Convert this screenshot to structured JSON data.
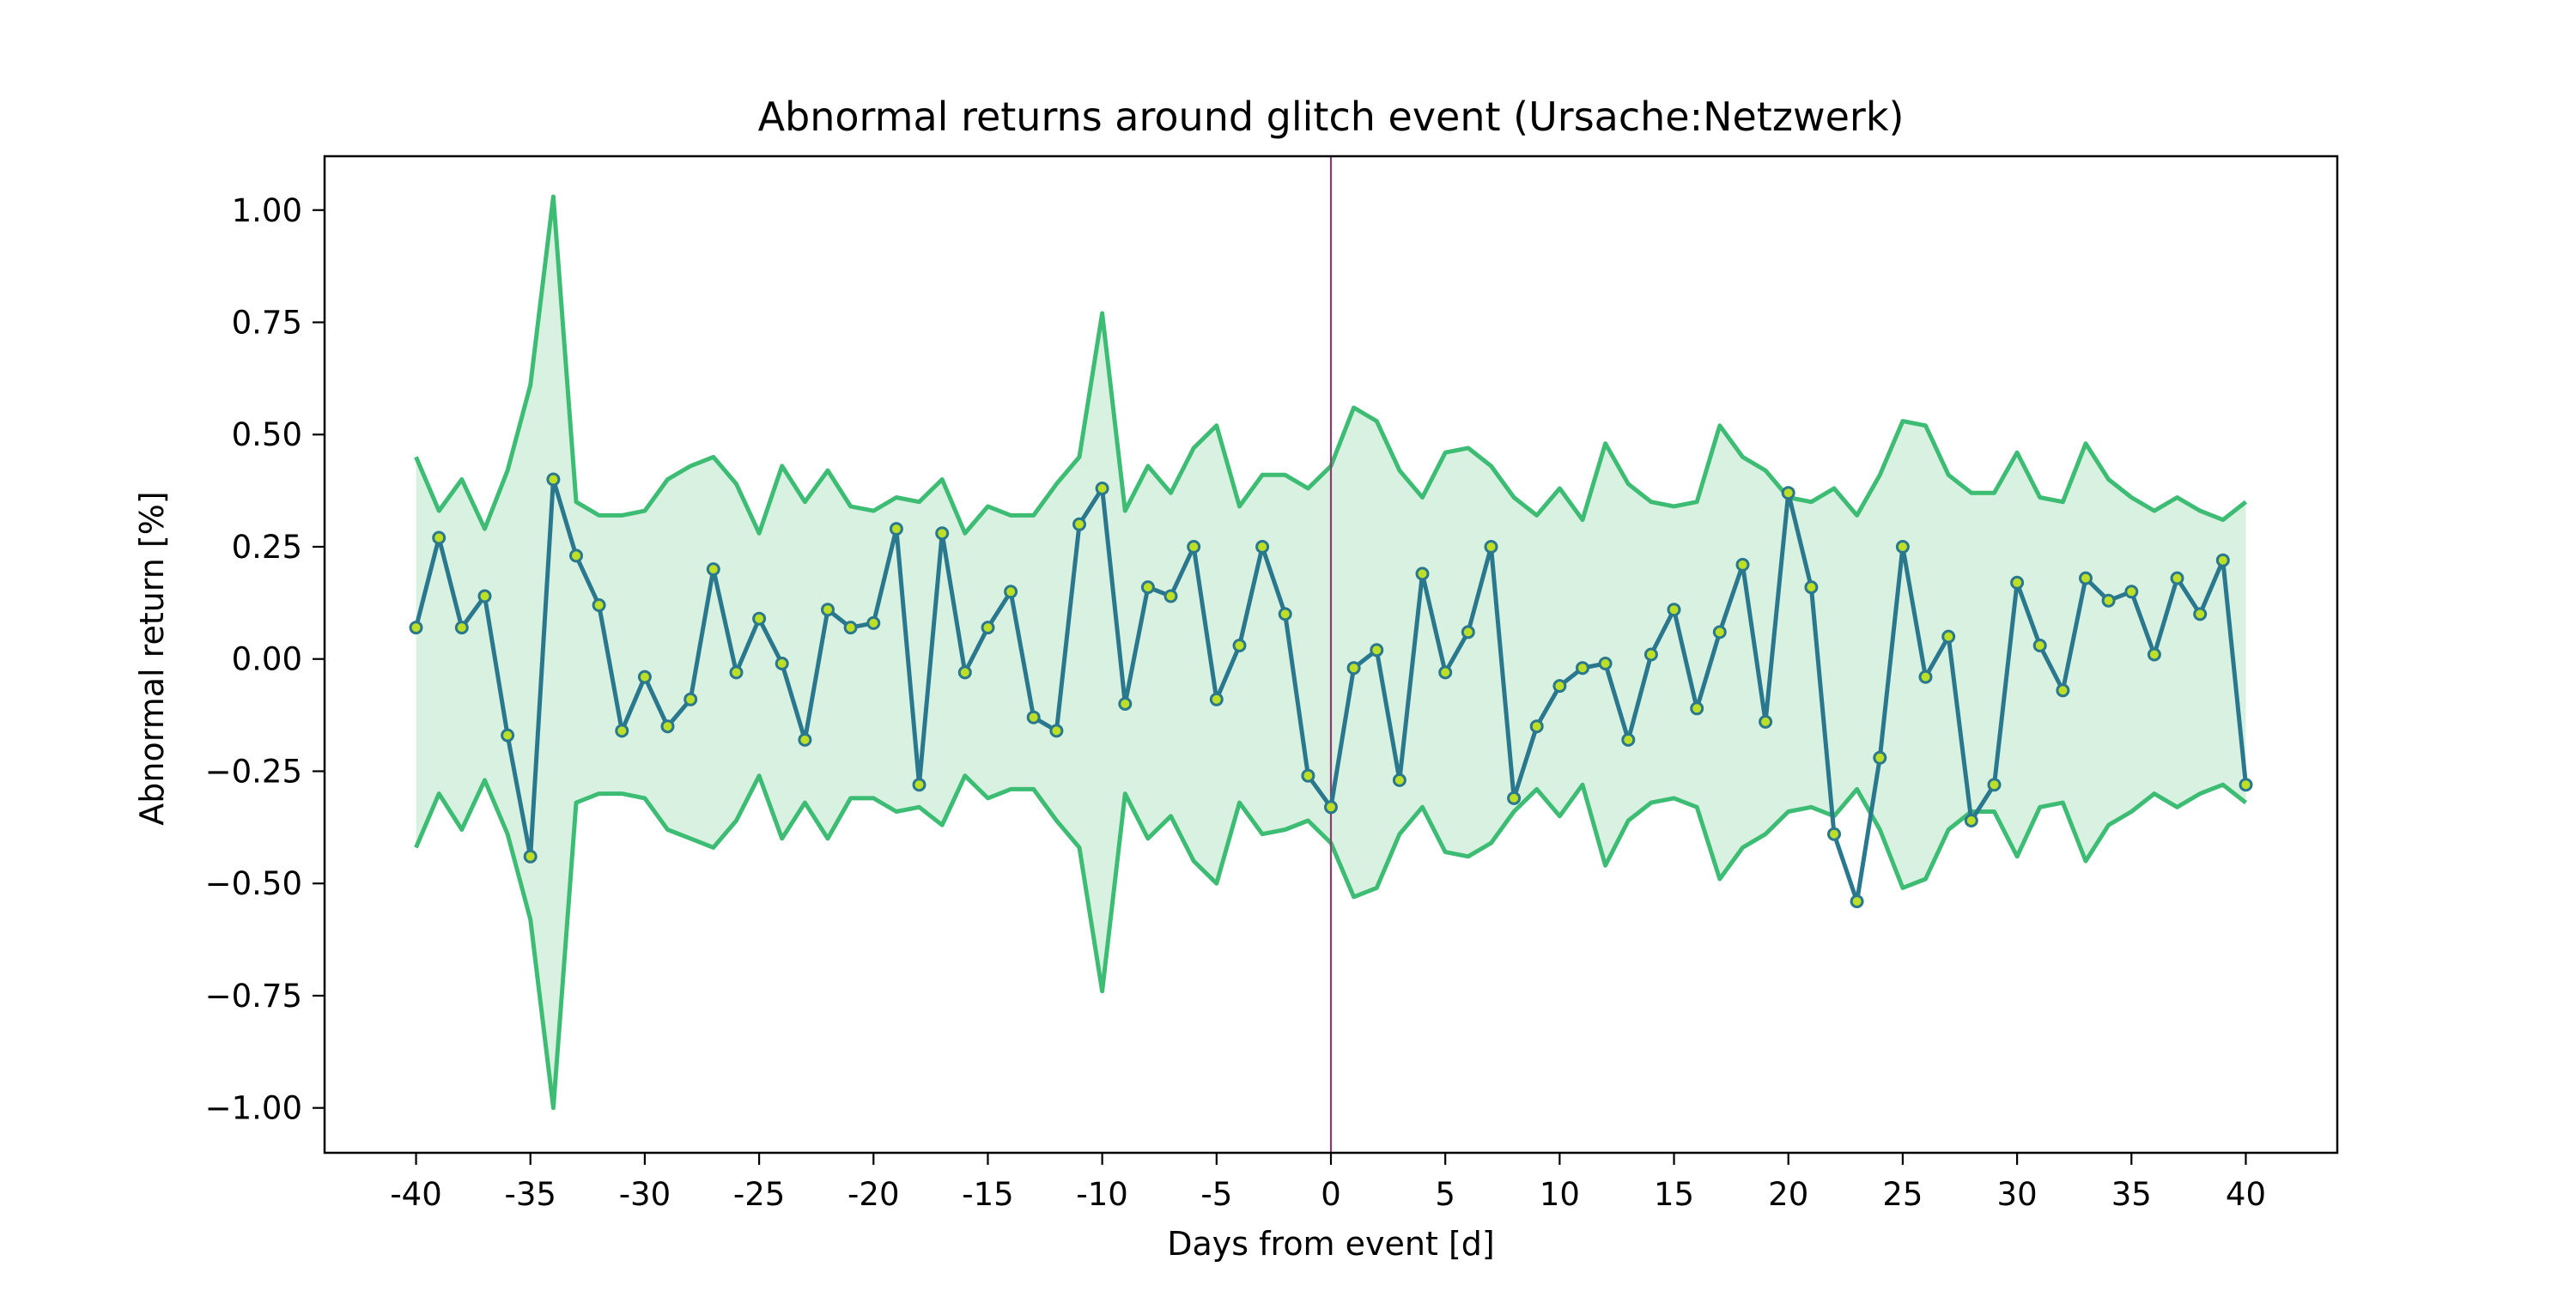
{
  "chart_data": {
    "type": "line",
    "title": "Abnormal returns around glitch event (Ursache:Netzwerk)",
    "xlabel": "Days from event [d]",
    "ylabel": "Abnormal return [%]",
    "xlim": [
      -44,
      44
    ],
    "ylim": [
      -1.1,
      1.12
    ],
    "x_ticks": [
      -40,
      -35,
      -30,
      -25,
      -20,
      -15,
      -10,
      -5,
      0,
      5,
      10,
      15,
      20,
      25,
      30,
      35,
      40
    ],
    "x_tick_labels": [
      "-40",
      "-35",
      "-30",
      "-25",
      "-20",
      "-15",
      "-10",
      "-5",
      "0",
      "5",
      "10",
      "15",
      "20",
      "25",
      "30",
      "35",
      "40"
    ],
    "y_ticks": [
      -1.0,
      -0.75,
      -0.5,
      -0.25,
      0.0,
      0.25,
      0.5,
      0.75,
      1.0
    ],
    "y_tick_labels": [
      "−1.00",
      "−0.75",
      "−0.50",
      "−0.25",
      "0.00",
      "0.25",
      "0.50",
      "0.75",
      "1.00"
    ],
    "event_day": 0,
    "grid": false,
    "legend": "none",
    "x": [
      -40,
      -39,
      -38,
      -37,
      -36,
      -35,
      -34,
      -33,
      -32,
      -31,
      -30,
      -29,
      -28,
      -27,
      -26,
      -25,
      -24,
      -23,
      -22,
      -21,
      -20,
      -19,
      -18,
      -17,
      -16,
      -15,
      -14,
      -13,
      -12,
      -11,
      -10,
      -9,
      -8,
      -7,
      -6,
      -5,
      -4,
      -3,
      -2,
      -1,
      0,
      1,
      2,
      3,
      4,
      5,
      6,
      7,
      8,
      9,
      10,
      11,
      12,
      13,
      14,
      15,
      16,
      17,
      18,
      19,
      20,
      21,
      22,
      23,
      24,
      25,
      26,
      27,
      28,
      29,
      30,
      31,
      32,
      33,
      34,
      35,
      36,
      37,
      38,
      39,
      40
    ],
    "series": [
      {
        "role": "abnormal return",
        "values": [
          0.07,
          0.27,
          0.07,
          0.14,
          -0.17,
          -0.44,
          0.4,
          0.23,
          0.12,
          -0.16,
          -0.04,
          -0.15,
          -0.09,
          0.2,
          -0.03,
          0.09,
          -0.01,
          -0.18,
          0.11,
          0.07,
          0.08,
          0.29,
          -0.28,
          0.28,
          -0.03,
          0.07,
          0.15,
          -0.13,
          -0.16,
          0.3,
          0.38,
          -0.1,
          0.16,
          0.14,
          0.25,
          -0.09,
          0.03,
          0.25,
          0.1,
          -0.26,
          -0.33,
          -0.02,
          0.02,
          -0.27,
          0.19,
          -0.03,
          0.06,
          0.25,
          -0.31,
          -0.15,
          -0.06,
          -0.02,
          -0.01,
          -0.18,
          0.01,
          0.11,
          -0.11,
          0.06,
          0.21,
          -0.14,
          0.37,
          0.16,
          -0.39,
          -0.54,
          -0.22,
          0.25,
          -0.04,
          0.05,
          -0.36,
          -0.28,
          0.17,
          0.03,
          -0.07,
          0.18,
          0.13,
          0.15,
          0.01,
          0.18,
          0.1,
          0.22,
          -0.28
        ]
      },
      {
        "role": "upper band",
        "values": [
          0.45,
          0.33,
          0.4,
          0.29,
          0.42,
          0.61,
          1.03,
          0.35,
          0.32,
          0.32,
          0.33,
          0.4,
          0.43,
          0.45,
          0.39,
          0.28,
          0.43,
          0.35,
          0.42,
          0.34,
          0.33,
          0.36,
          0.35,
          0.4,
          0.28,
          0.34,
          0.32,
          0.32,
          0.39,
          0.45,
          0.77,
          0.33,
          0.43,
          0.37,
          0.47,
          0.52,
          0.34,
          0.41,
          0.41,
          0.38,
          0.43,
          0.56,
          0.53,
          0.42,
          0.36,
          0.46,
          0.47,
          0.43,
          0.36,
          0.32,
          0.38,
          0.31,
          0.48,
          0.39,
          0.35,
          0.34,
          0.35,
          0.52,
          0.45,
          0.42,
          0.36,
          0.35,
          0.38,
          0.32,
          0.41,
          0.53,
          0.52,
          0.41,
          0.37,
          0.37,
          0.46,
          0.36,
          0.35,
          0.48,
          0.4,
          0.36,
          0.33,
          0.36,
          0.33,
          0.31,
          0.35
        ]
      },
      {
        "role": "lower band",
        "values": [
          -0.42,
          -0.3,
          -0.38,
          -0.27,
          -0.39,
          -0.58,
          -1.0,
          -0.32,
          -0.3,
          -0.3,
          -0.31,
          -0.38,
          -0.4,
          -0.42,
          -0.36,
          -0.26,
          -0.4,
          -0.32,
          -0.4,
          -0.31,
          -0.31,
          -0.34,
          -0.33,
          -0.37,
          -0.26,
          -0.31,
          -0.29,
          -0.29,
          -0.36,
          -0.42,
          -0.74,
          -0.3,
          -0.4,
          -0.35,
          -0.45,
          -0.5,
          -0.32,
          -0.39,
          -0.38,
          -0.36,
          -0.41,
          -0.53,
          -0.51,
          -0.39,
          -0.33,
          -0.43,
          -0.44,
          -0.41,
          -0.34,
          -0.29,
          -0.35,
          -0.28,
          -0.46,
          -0.36,
          -0.32,
          -0.31,
          -0.33,
          -0.49,
          -0.42,
          -0.39,
          -0.34,
          -0.33,
          -0.35,
          -0.29,
          -0.38,
          -0.51,
          -0.49,
          -0.38,
          -0.34,
          -0.34,
          -0.44,
          -0.33,
          -0.32,
          -0.45,
          -0.37,
          -0.34,
          -0.3,
          -0.33,
          -0.3,
          -0.28,
          -0.32
        ]
      }
    ],
    "colors": {
      "main_line": "#2a788e",
      "marker_fill": "#bddf26",
      "marker_edge": "#2a788e",
      "band_line": "#3dbc74",
      "band_fill": "#d8f1e0",
      "event_line": "#8c3a6f",
      "frame": "#000000"
    }
  }
}
